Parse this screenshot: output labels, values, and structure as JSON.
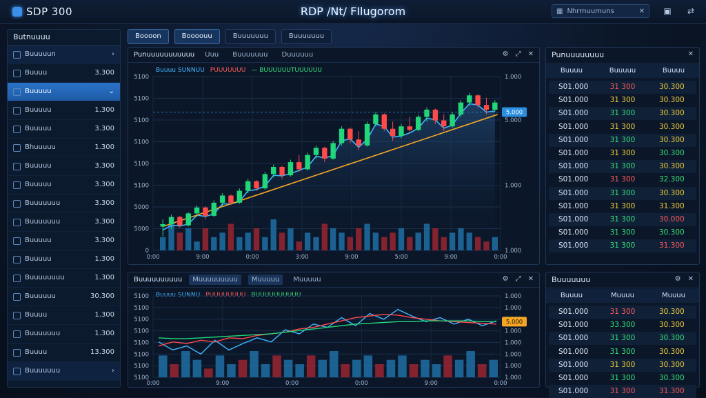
{
  "header": {
    "logo_text": "SDP 300",
    "title": "RDP /Nt/ FIlugorom",
    "search_text": "Nhrrnuumuns",
    "icons": [
      "grid-icon",
      "close-icon",
      "save-icon",
      "toggle-icon"
    ]
  },
  "sidebar": {
    "title": "Butnuuuu",
    "items": [
      {
        "label": "Buuuuun",
        "value": "",
        "arrow": "›"
      },
      {
        "label": "Buuuu",
        "value": "3.300"
      },
      {
        "label": "Buuuuu",
        "value": "",
        "arrow": "⌄",
        "active": true
      },
      {
        "label": "Buuuuu",
        "value": "1.300"
      },
      {
        "label": "Buuuuu",
        "value": "3.300"
      },
      {
        "label": "Bhuuuuu",
        "value": "1.300"
      },
      {
        "label": "Buuuuu",
        "value": "3.300"
      },
      {
        "label": "Buuuuu",
        "value": "3.300"
      },
      {
        "label": "Buuuuuuu",
        "value": "3.300"
      },
      {
        "label": "Buuuuuuu",
        "value": "3.300"
      },
      {
        "label": "Buuuuu",
        "value": "3.300"
      },
      {
        "label": "Buuuuu",
        "value": "1.300"
      },
      {
        "label": "Buuuuuuuu",
        "value": "1.300"
      },
      {
        "label": "Buuuuuu",
        "value": "30.300"
      },
      {
        "label": "Buuuu",
        "value": "1.300"
      },
      {
        "label": "Buuuuuuu",
        "value": "1.300"
      },
      {
        "label": "Buuuu",
        "value": "13.300"
      },
      {
        "label": "Buuuuuuu",
        "value": "",
        "arrow": "›"
      }
    ]
  },
  "tabs": [
    "Boooon",
    "Boooouu",
    "Buuuuuuu",
    "Buuuuuuu"
  ],
  "chart1": {
    "title": "Punuuuuuuuuuuu",
    "subtabs": [
      "Uuu",
      "Buuuuuuu",
      "Duuuuuu"
    ],
    "legend": [
      {
        "label": "Buuuu SUNNUU",
        "color": "#3fb7ff"
      },
      {
        "label": "PUUUUUUU",
        "color": "#ff5a5a"
      },
      {
        "label": "— BUUUUUUTUUUUUU",
        "color": "#38e07a"
      }
    ],
    "y_left": [
      "5100",
      "5100",
      "5100",
      "5100",
      "5100",
      "5100",
      "5000",
      "5000",
      "0"
    ],
    "y_right": [
      "1.000",
      "",
      "5.000",
      "",
      "",
      "1.000",
      "",
      "",
      "1.000"
    ],
    "x_labels": [
      "0:00",
      "9:00",
      "0:00",
      "3:00",
      "9:00",
      "5:00",
      "9:00",
      "0:00"
    ],
    "price_tag": "5.000",
    "price_tag2": "5.000"
  },
  "chart2": {
    "title": "Buuuuuuuuuu",
    "subtabs": [
      "Muuuuuuuuu",
      "Muuuuu",
      "Muuuuu"
    ],
    "legend": [
      {
        "label": "Buuuu SUNNU",
        "color": "#3fb7ff"
      },
      {
        "label": "PUUUUUUUU",
        "color": "#ff5a5a"
      },
      {
        "label": "BUUUUUUUUUU",
        "color": "#38e07a"
      }
    ],
    "y_left": [
      "5100",
      "5100",
      "5100",
      "5100",
      "5100",
      "5100",
      "5100",
      "5100"
    ],
    "y_right": [
      "1.000",
      "1.000",
      "1.000",
      "1.000",
      "1.000",
      "1.000",
      "1.000",
      "1.000"
    ],
    "x_labels": [
      "0:00",
      "9:00",
      "0:00",
      "0:00",
      "9:00",
      "0:00"
    ],
    "price_tag": "5.000"
  },
  "table1": {
    "title": "Punuuuuuuuu",
    "columns": [
      "Buuuu",
      "Buuuuu",
      "Buuuu"
    ],
    "rows": [
      [
        "S01.000",
        "31 300",
        "30.300",
        "c-r",
        "c-y"
      ],
      [
        "S01.000",
        "31 300",
        "30.300",
        "c-y",
        "c-y"
      ],
      [
        "S01.000",
        "31 300",
        "30.300",
        "c-g",
        "c-y"
      ],
      [
        "S01.000",
        "31 300",
        "30.300",
        "c-y",
        "c-y"
      ],
      [
        "S01.000",
        "31 300",
        "30.300",
        "c-g",
        "c-y"
      ],
      [
        "S01.000",
        "31 300",
        "30.300",
        "c-y",
        "c-g"
      ],
      [
        "S01.000",
        "31 300",
        "30.300",
        "c-g",
        "c-y"
      ],
      [
        "S01.000",
        "31 300",
        "32.300",
        "c-r",
        "c-g"
      ],
      [
        "S01.000",
        "31 300",
        "30.300",
        "c-g",
        "c-y"
      ],
      [
        "S01.000",
        "31 300",
        "31.300",
        "c-y",
        "c-y"
      ],
      [
        "S01.000",
        "31 300",
        "30.000",
        "c-g",
        "c-r"
      ],
      [
        "S01.000",
        "31 300",
        "30.300",
        "c-g",
        "c-g"
      ],
      [
        "S01.000",
        "31 300",
        "31.300",
        "c-g",
        "c-r"
      ]
    ]
  },
  "table2": {
    "title": "Buuuuuuu",
    "columns": [
      "Buuuu",
      "Muuuu",
      "Muuuu"
    ],
    "rows": [
      [
        "S01.000",
        "31 300",
        "30.300",
        "c-r",
        "c-y"
      ],
      [
        "S01.000",
        "33.300",
        "30.300",
        "c-g",
        "c-y"
      ],
      [
        "S01.000",
        "31 300",
        "30.300",
        "c-g",
        "c-g"
      ],
      [
        "S01.000",
        "31 300",
        "30.300",
        "c-g",
        "c-y"
      ],
      [
        "S01.000",
        "31 300",
        "30.300",
        "c-y",
        "c-y"
      ],
      [
        "S01.000",
        "31 300",
        "30.300",
        "c-g",
        "c-g"
      ],
      [
        "S01.000",
        "31 300",
        "31.300",
        "c-r",
        "c-r"
      ]
    ]
  },
  "colors": {
    "bull": "#22d67a",
    "bear": "#ff4a4a",
    "ma_blue": "#3fb7ff",
    "ma_orange": "#f5a623",
    "vol_blue": "#1f6fa3",
    "vol_red": "#9b2530",
    "accent": "#2a73c9"
  },
  "chart_data": [
    {
      "type": "candlestick",
      "ohlc": [
        [
          5000,
          5030,
          4960,
          5010
        ],
        [
          5010,
          5050,
          4990,
          5040
        ],
        [
          5040,
          5045,
          4995,
          5005
        ],
        [
          5005,
          5060,
          5000,
          5055
        ],
        [
          5055,
          5090,
          5040,
          5080
        ],
        [
          5080,
          5085,
          5030,
          5045
        ],
        [
          5045,
          5110,
          5040,
          5100
        ],
        [
          5100,
          5140,
          5085,
          5130
        ],
        [
          5130,
          5135,
          5090,
          5100
        ],
        [
          5100,
          5160,
          5095,
          5150
        ],
        [
          5150,
          5200,
          5140,
          5190
        ],
        [
          5190,
          5195,
          5150,
          5160
        ],
        [
          5160,
          5230,
          5155,
          5220
        ],
        [
          5220,
          5260,
          5205,
          5250
        ],
        [
          5250,
          5255,
          5200,
          5215
        ],
        [
          5215,
          5280,
          5210,
          5270
        ],
        [
          5270,
          5300,
          5230,
          5240
        ],
        [
          5240,
          5310,
          5235,
          5300
        ],
        [
          5300,
          5340,
          5285,
          5330
        ],
        [
          5330,
          5335,
          5270,
          5285
        ],
        [
          5285,
          5360,
          5280,
          5350
        ],
        [
          5350,
          5420,
          5340,
          5410
        ],
        [
          5410,
          5415,
          5350,
          5365
        ],
        [
          5365,
          5400,
          5320,
          5340
        ],
        [
          5340,
          5440,
          5335,
          5430
        ],
        [
          5430,
          5480,
          5420,
          5470
        ],
        [
          5470,
          5475,
          5400,
          5410
        ],
        [
          5410,
          5440,
          5360,
          5380
        ],
        [
          5380,
          5430,
          5370,
          5420
        ],
        [
          5420,
          5460,
          5395,
          5405
        ],
        [
          5405,
          5470,
          5400,
          5460
        ],
        [
          5460,
          5500,
          5440,
          5490
        ],
        [
          5490,
          5495,
          5430,
          5445
        ],
        [
          5445,
          5470,
          5400,
          5420
        ],
        [
          5420,
          5480,
          5415,
          5470
        ],
        [
          5470,
          5530,
          5460,
          5520
        ],
        [
          5520,
          5560,
          5505,
          5550
        ],
        [
          5550,
          5555,
          5500,
          5510
        ],
        [
          5510,
          5540,
          5470,
          5490
        ],
        [
          5490,
          5530,
          5480,
          5520
        ]
      ],
      "volume": [
        3,
        6,
        4,
        5,
        2,
        5,
        3,
        4,
        6,
        3,
        4,
        5,
        3,
        7,
        4,
        5,
        2,
        4,
        3,
        6,
        5,
        4,
        3,
        5,
        6,
        4,
        3,
        4,
        5,
        3,
        4,
        6,
        5,
        3,
        4,
        5,
        4,
        3,
        2,
        3
      ]
    },
    {
      "type": "line",
      "series": [
        {
          "color": "#3fb7ff",
          "values": [
            40,
            30,
            35,
            25,
            42,
            30,
            38,
            45,
            40,
            55,
            50,
            62,
            58,
            70,
            60,
            75,
            68,
            80,
            72,
            65,
            70,
            62,
            68,
            60,
            66
          ]
        },
        {
          "color": "#ff4a4a",
          "values": [
            35,
            40,
            38,
            42,
            40,
            45,
            44,
            48,
            50,
            52,
            56,
            58,
            62,
            66,
            70,
            72,
            74,
            73,
            70,
            68,
            66,
            65,
            64,
            63,
            62
          ]
        },
        {
          "color": "#22d67a",
          "values": [
            45,
            44,
            44,
            45,
            46,
            47,
            48,
            49,
            50,
            52,
            54,
            56,
            58,
            60,
            62,
            63,
            64,
            65,
            65,
            66,
            66,
            66,
            66,
            65,
            65
          ]
        }
      ],
      "volume": [
        5,
        3,
        6,
        4,
        2,
        5,
        3,
        4,
        6,
        3,
        5,
        4,
        3,
        5,
        4,
        6,
        3,
        4,
        5,
        3,
        4,
        5,
        3,
        4,
        3,
        5,
        4,
        6,
        3,
        4
      ]
    }
  ]
}
